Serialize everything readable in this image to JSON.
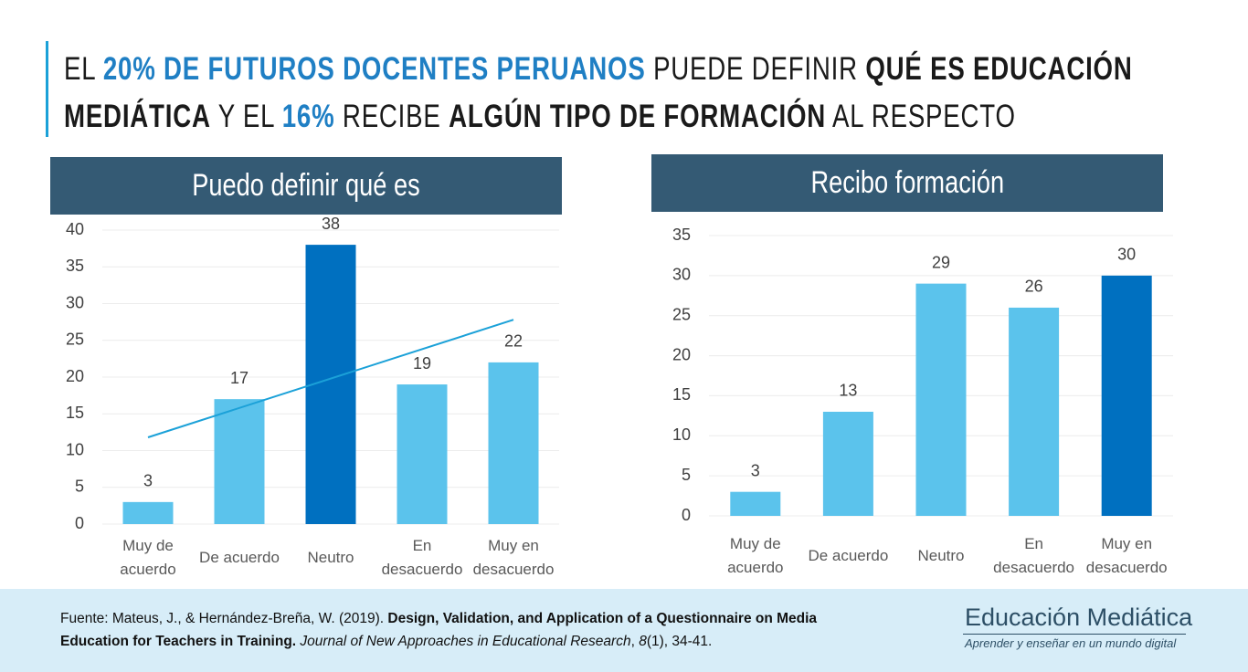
{
  "header": {
    "title": [
      {
        "text": "EL ",
        "style": "plain"
      },
      {
        "text": "20% DE FUTUROS DOCENTES PERUANOS",
        "style": "accent"
      },
      {
        "text": " PUEDE DEFINIR ",
        "style": "plain"
      },
      {
        "text": "QUÉ ES EDUCACIÓN MEDIÁTICA",
        "style": "bold"
      },
      {
        "text": " Y EL ",
        "style": "plain"
      },
      {
        "text": "16%",
        "style": "accent"
      },
      {
        "text": " RECIBE ",
        "style": "plain"
      },
      {
        "text": "ALGÚN TIPO DE FORMACIÓN",
        "style": "bold"
      },
      {
        "text": " AL RESPECTO",
        "style": "plain"
      }
    ]
  },
  "chart_data": [
    {
      "type": "bar",
      "title": "Puedo definir qué es",
      "categories": [
        "Muy de acuerdo",
        "De acuerdo",
        "Neutro",
        "En desacuerdo",
        "Muy en desacuerdo"
      ],
      "values": [
        3,
        17,
        38,
        19,
        22
      ],
      "colors": [
        "#5bc3ec",
        "#5bc3ec",
        "#0070c0",
        "#5bc3ec",
        "#5bc3ec"
      ],
      "ylim": [
        0,
        40
      ],
      "yticks": [
        0,
        5,
        10,
        15,
        20,
        25,
        30,
        35,
        40
      ],
      "grid": true,
      "trendline": "linear",
      "trendline_color": "#1ba1d8"
    },
    {
      "type": "bar",
      "title": "Recibo formación",
      "categories": [
        "Muy de acuerdo",
        "De acuerdo",
        "Neutro",
        "En desacuerdo",
        "Muy en desacuerdo"
      ],
      "values": [
        3,
        13,
        29,
        26,
        30
      ],
      "colors": [
        "#5bc3ec",
        "#5bc3ec",
        "#5bc3ec",
        "#5bc3ec",
        "#0070c0"
      ],
      "ylim": [
        0,
        35
      ],
      "yticks": [
        0,
        5,
        10,
        15,
        20,
        25,
        30,
        35
      ],
      "grid": true
    }
  ],
  "footer": {
    "source": [
      {
        "text": "Fuente: Mateus, J., & Hernández-Breña, W. (2019). ",
        "style": "plain"
      },
      {
        "text": "Design, Validation, and Application of a Questionnaire on Media Education for Teachers in Training.",
        "style": "bold"
      },
      {
        "text": " ",
        "style": "plain"
      },
      {
        "text": "Journal of New Approaches in Educational Research",
        "style": "italic"
      },
      {
        "text": ", ",
        "style": "plain"
      },
      {
        "text": "8",
        "style": "italic"
      },
      {
        "text": "(1), 34-41.",
        "style": "plain"
      }
    ],
    "logo": {
      "name": "Educación Mediática",
      "tagline": "Aprender y enseñar en un mundo digital"
    }
  }
}
